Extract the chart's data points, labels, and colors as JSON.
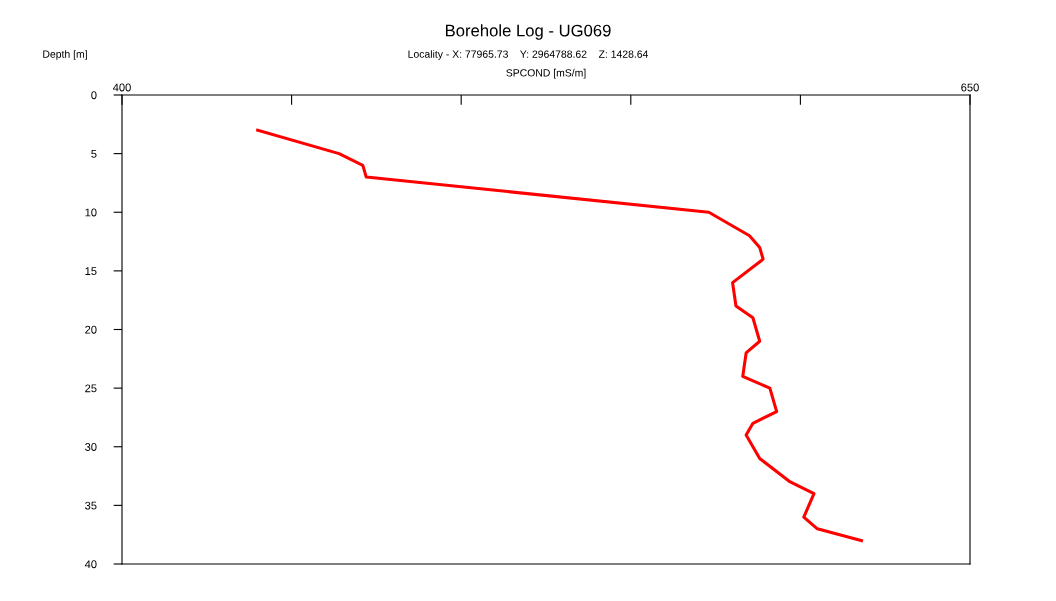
{
  "chart_data": {
    "type": "line",
    "orientation": "horizontal",
    "title": "Borehole Log - UG069",
    "subtitle": "Locality - X: 77965.73    Y: 2964788.62    Z: 1428.64",
    "xlabel": "SPCOND [mS/m]",
    "ylabel": "Depth [m]",
    "x": [
      3,
      5,
      6,
      7,
      10,
      12,
      13,
      14,
      16,
      18,
      19,
      21,
      22,
      24,
      25,
      27,
      28,
      29,
      31,
      33,
      34,
      36,
      37,
      38
    ],
    "series": [
      {
        "color": "#ff0000",
        "values": [
          440,
          464,
          471,
          472,
          573,
          585,
          588,
          589,
          580,
          581,
          586,
          588,
          584,
          583,
          591,
          593,
          586,
          584,
          588,
          597,
          604,
          601,
          605,
          618
        ]
      }
    ],
    "xlim": [
      400,
      650
    ],
    "xticks": [
      400,
      {
        "value": 450,
        "label": null
      },
      {
        "value": 500,
        "label": null
      },
      {
        "value": 550,
        "label": null
      },
      {
        "value": 600,
        "label": null
      },
      650
    ],
    "ylim": [
      40,
      0
    ],
    "yticks": [
      0,
      5,
      10,
      15,
      20,
      25,
      30,
      35,
      40
    ],
    "grid": false,
    "legend": false,
    "marker": "none",
    "line_style": "solid"
  }
}
